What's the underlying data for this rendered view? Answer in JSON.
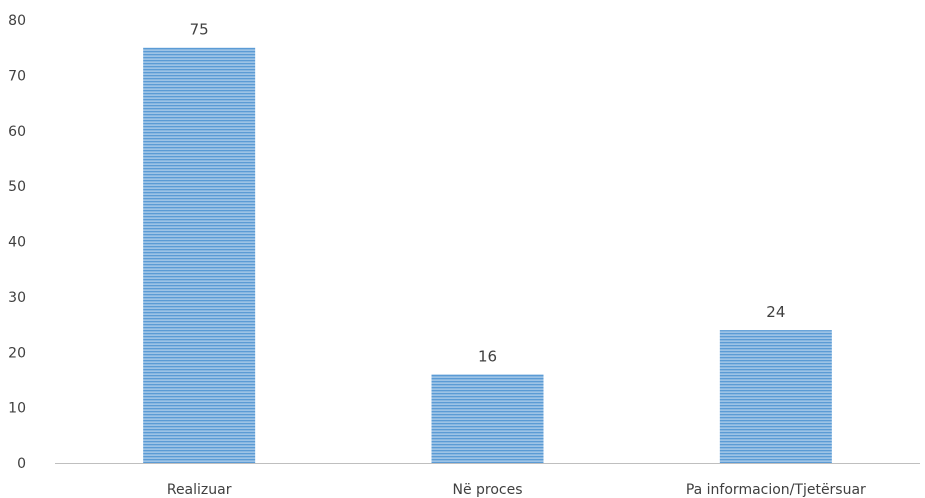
{
  "chart_data": {
    "type": "bar",
    "categories": [
      "Realizuar",
      "Në proces",
      "Pa informacion/Tjetërsuar"
    ],
    "values": [
      75,
      16,
      24
    ],
    "data_labels": [
      "75",
      "16",
      "24"
    ],
    "title": "",
    "xlabel": "",
    "ylabel": "",
    "ylim": [
      0,
      80
    ],
    "yticks": [
      0,
      10,
      20,
      30,
      40,
      50,
      60,
      70,
      80
    ],
    "ytick_labels": [
      "0",
      "10",
      "20",
      "30",
      "40",
      "50",
      "60",
      "70",
      "80"
    ],
    "grid": false,
    "legend": "none",
    "bar_fill_pattern": "horizontal-stripes",
    "colors": {
      "bar_fill": "#9dc3e6",
      "bar_stripe": "#5b9bd5",
      "axis_line": "#bfbfbf",
      "text": "#404040"
    }
  }
}
